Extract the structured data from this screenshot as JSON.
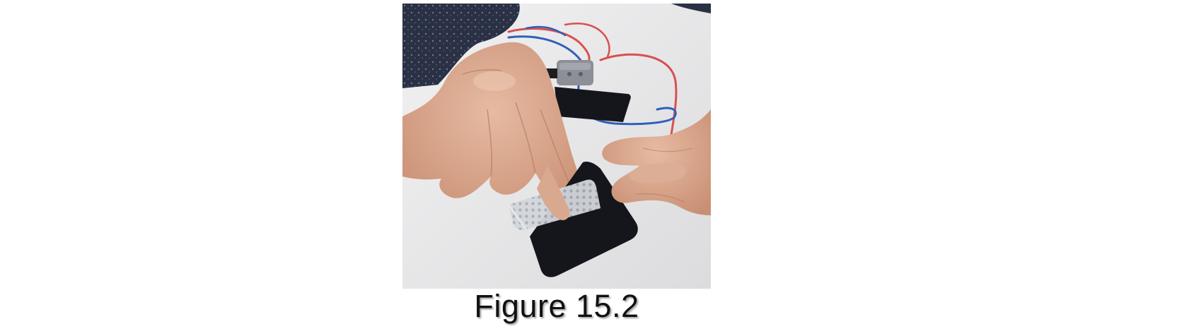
{
  "figure": {
    "caption": "Figure 15.2",
    "colors": {
      "table": "#e9e9ea",
      "sleeve": "#2a3042",
      "skin": "#d9a98f",
      "electrode": "#15161b",
      "backing": "#cfd3d8",
      "wire_red": "#d8504f",
      "wire_blue": "#2f5fb8",
      "connector": "#8c8f96"
    }
  }
}
